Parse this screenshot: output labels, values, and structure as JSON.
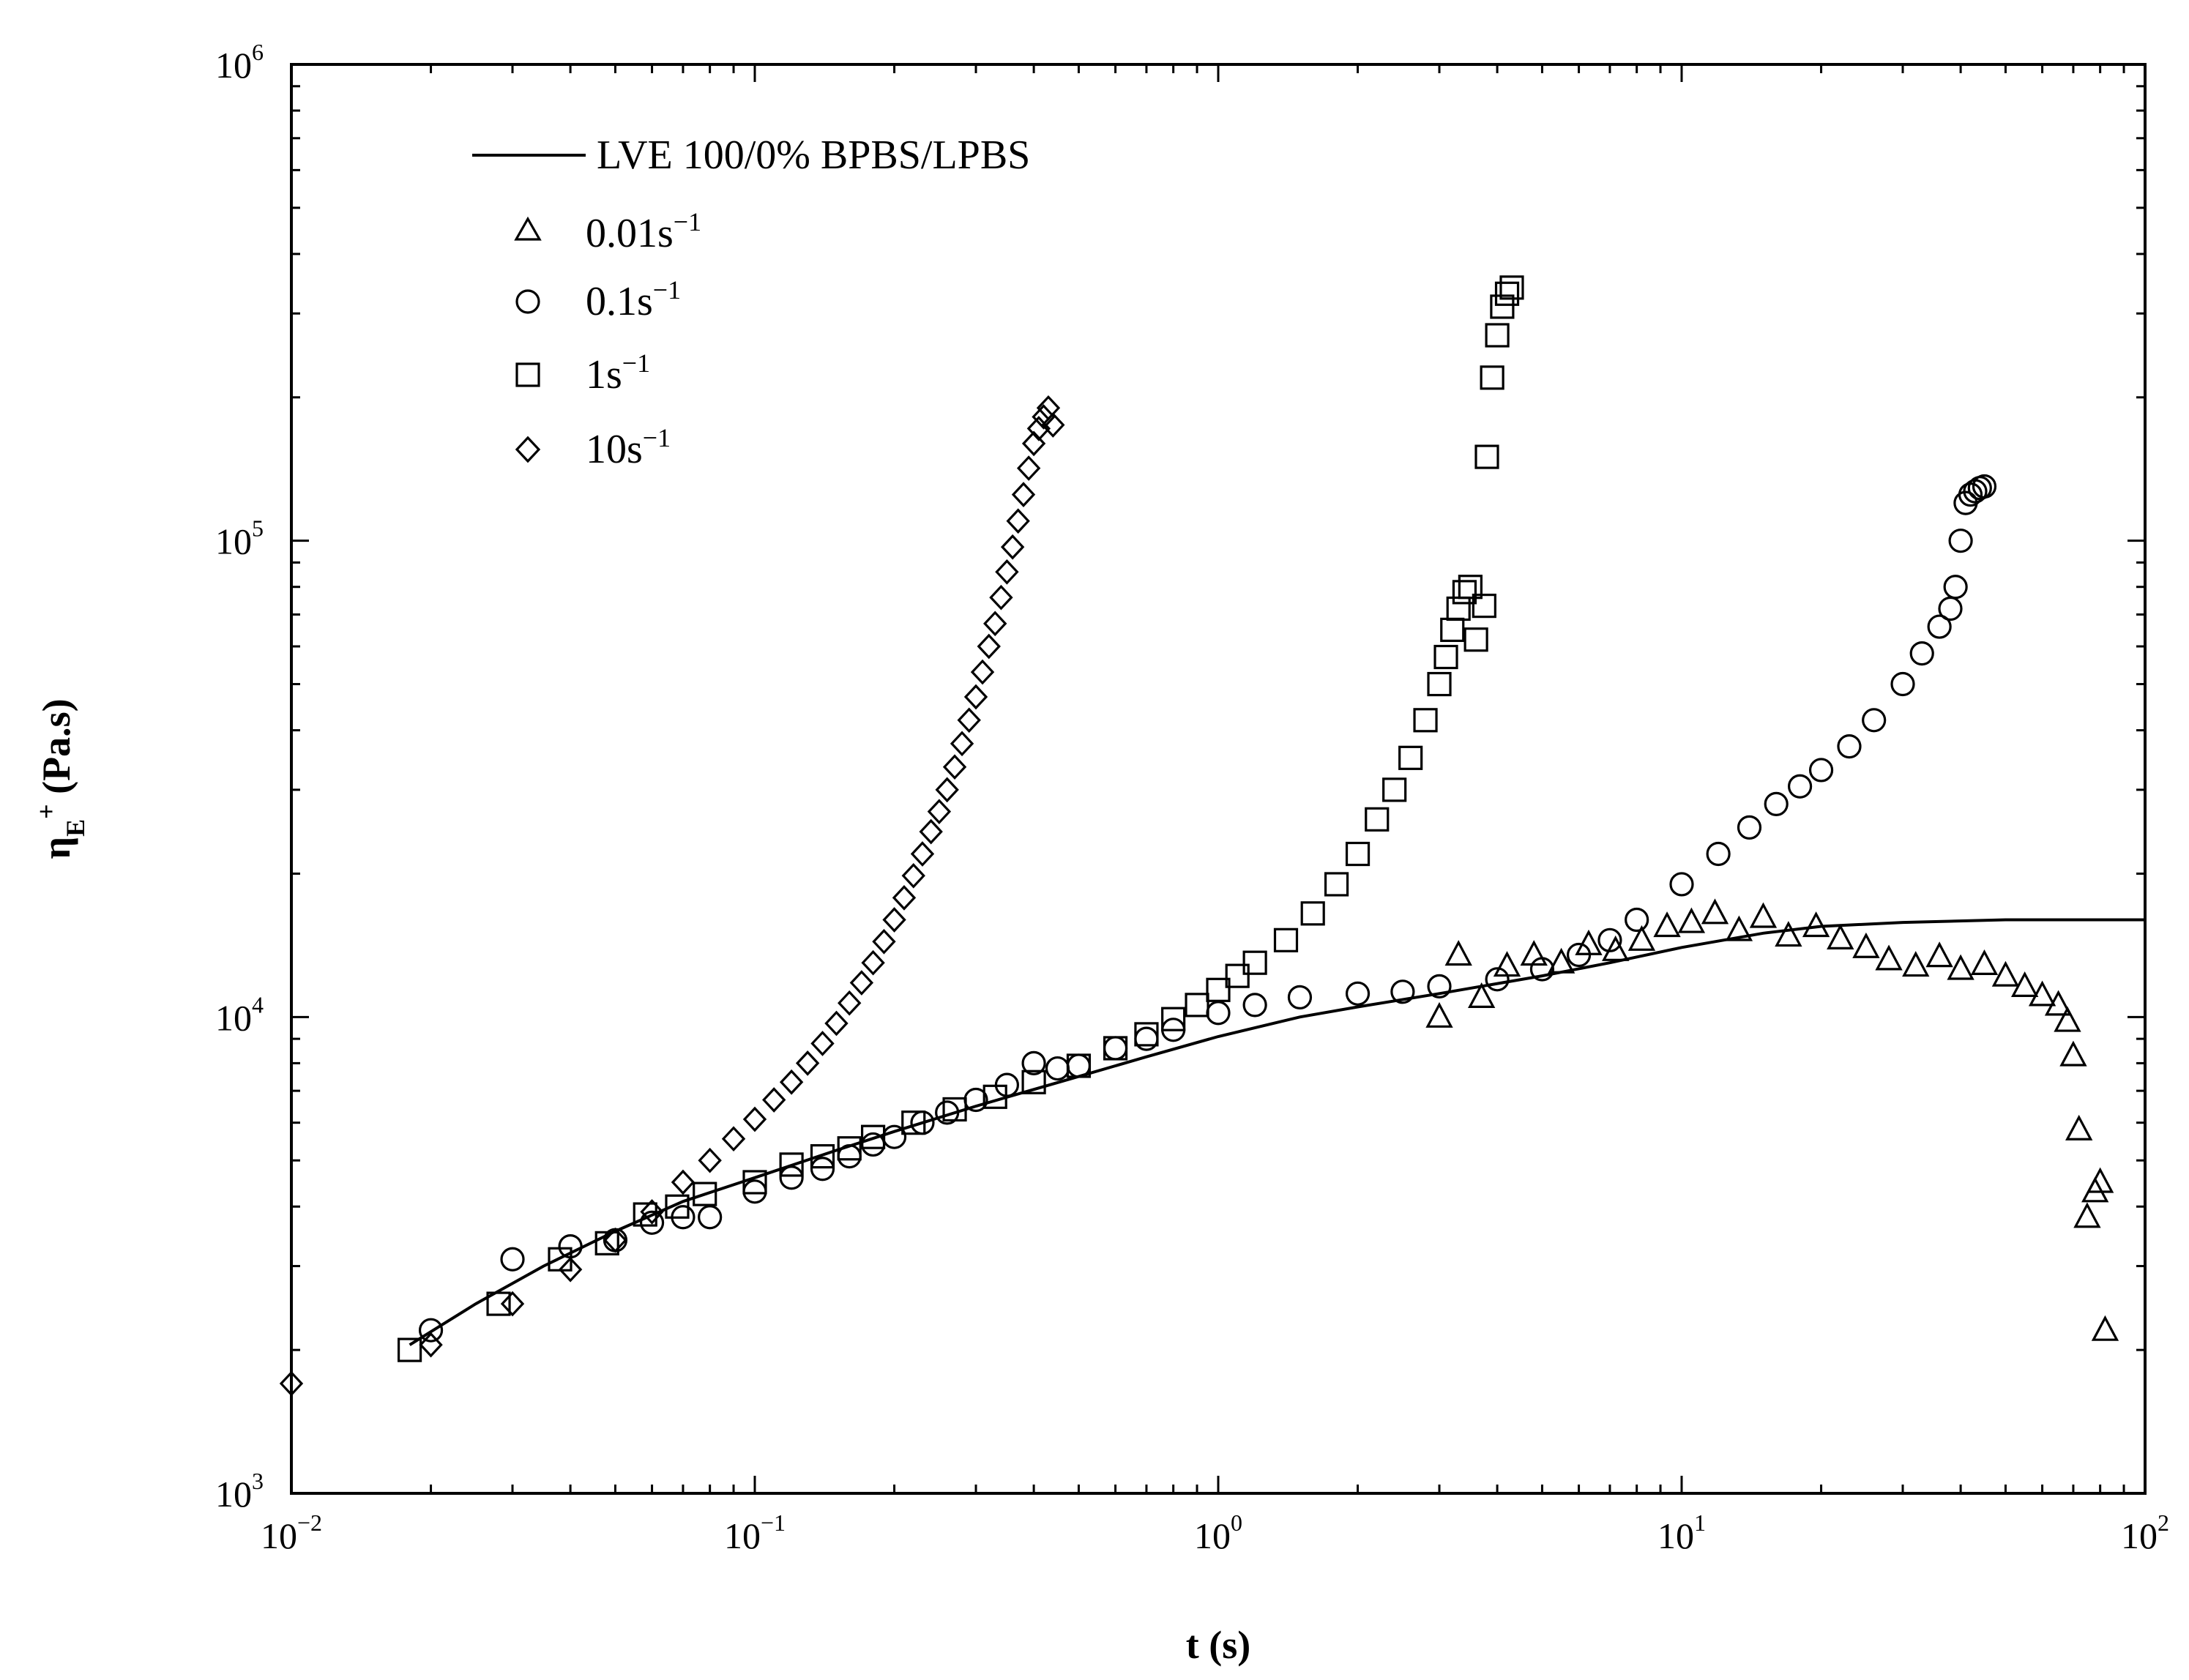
{
  "chart_data": {
    "type": "scatter",
    "x_scale": "log",
    "y_scale": "log",
    "xlim": [
      0.01,
      100
    ],
    "ylim": [
      1000,
      1000000
    ],
    "xlabel": {
      "base": "t",
      "rest": " (s)"
    },
    "ylabel": {
      "base": "η",
      "sub": "E",
      "sup": "+",
      "rest": " (Pa.s)"
    },
    "x_ticks": [
      {
        "value": 0.01,
        "base": "10",
        "exp": "−2"
      },
      {
        "value": 0.1,
        "base": "10",
        "exp": "−1"
      },
      {
        "value": 1,
        "base": "10",
        "exp": "0"
      },
      {
        "value": 10,
        "base": "10",
        "exp": "1"
      },
      {
        "value": 100,
        "base": "10",
        "exp": "2"
      }
    ],
    "y_ticks": [
      {
        "value": 1000,
        "base": "10",
        "exp": "3"
      },
      {
        "value": 10000,
        "base": "10",
        "exp": "4"
      },
      {
        "value": 100000,
        "base": "10",
        "exp": "5"
      },
      {
        "value": 1000000,
        "base": "10",
        "exp": "6"
      }
    ],
    "legend_position": "top-left",
    "line": {
      "name": "LVE 100/0% BPBS/LPBS",
      "x": [
        0.018,
        0.025,
        0.035,
        0.05,
        0.07,
        0.1,
        0.15,
        0.2,
        0.3,
        0.5,
        0.7,
        1.0,
        1.5,
        2.0,
        3.0,
        5.0,
        7.0,
        10.0,
        15.0,
        20.0,
        30.0,
        50.0,
        100.0
      ],
      "y": [
        2050,
        2500,
        3000,
        3550,
        4100,
        4600,
        5250,
        5750,
        6500,
        7500,
        8250,
        9100,
        10000,
        10500,
        11200,
        12200,
        13000,
        14000,
        15000,
        15500,
        15800,
        16000,
        16000
      ]
    },
    "series": [
      {
        "name": "0.01s",
        "name_sup": "−1",
        "marker": "triangle",
        "x": [
          3.0,
          3.3,
          3.7,
          4.2,
          4.8,
          5.5,
          6.3,
          7.2,
          8.2,
          9.3,
          10.5,
          11.8,
          13.3,
          15.0,
          17.0,
          19.5,
          22.0,
          25.0,
          28.0,
          32.0,
          36.0,
          40.0,
          45.0,
          50.0,
          55.0,
          60.0,
          65.0,
          68.0,
          70.0,
          72.0,
          75.0,
          78.0,
          80.0,
          82.0
        ],
        "y": [
          10000,
          13500,
          11000,
          12800,
          13500,
          13000,
          14200,
          13800,
          14500,
          15500,
          15800,
          16500,
          15200,
          16200,
          14800,
          15500,
          14600,
          14000,
          13200,
          12800,
          13400,
          12600,
          12900,
          12200,
          11600,
          11100,
          10600,
          9800,
          8300,
          5800,
          3800,
          4300,
          4500,
          2200
        ]
      },
      {
        "name": "0.1s",
        "name_sup": "−1",
        "marker": "circle",
        "x": [
          0.02,
          0.03,
          0.04,
          0.05,
          0.06,
          0.07,
          0.08,
          0.1,
          0.12,
          0.14,
          0.16,
          0.18,
          0.2,
          0.23,
          0.26,
          0.3,
          0.35,
          0.4,
          0.45,
          0.5,
          0.6,
          0.7,
          0.8,
          1.0,
          1.2,
          1.5,
          2.0,
          2.5,
          3.0,
          4.0,
          5.0,
          6.0,
          7.0,
          8.0,
          10.0,
          12.0,
          14.0,
          16.0,
          18.0,
          20.0,
          23.0,
          26.0,
          30.0,
          33.0,
          36.0,
          38.0,
          39.0,
          40.0,
          41.0,
          42.0,
          43.0,
          44.0,
          45.0
        ],
        "y": [
          2200,
          3100,
          3300,
          3400,
          3700,
          3800,
          3800,
          4300,
          4600,
          4800,
          5100,
          5400,
          5600,
          6000,
          6300,
          6700,
          7200,
          8000,
          7800,
          7900,
          8600,
          9000,
          9400,
          10200,
          10600,
          11000,
          11200,
          11300,
          11600,
          12000,
          12600,
          13500,
          14500,
          16000,
          19000,
          22000,
          25000,
          28000,
          30500,
          33000,
          37000,
          42000,
          50000,
          58000,
          66000,
          72000,
          80000,
          100000,
          120000,
          125000,
          127000,
          129000,
          130000
        ]
      },
      {
        "name": "1s",
        "name_sup": "−1",
        "marker": "square",
        "x": [
          0.018,
          0.028,
          0.038,
          0.048,
          0.058,
          0.068,
          0.078,
          0.1,
          0.12,
          0.14,
          0.16,
          0.18,
          0.22,
          0.27,
          0.33,
          0.4,
          0.5,
          0.6,
          0.7,
          0.8,
          0.9,
          1.0,
          1.1,
          1.2,
          1.4,
          1.6,
          1.8,
          2.0,
          2.2,
          2.4,
          2.6,
          2.8,
          3.0,
          3.1,
          3.2,
          3.3,
          3.4,
          3.5,
          3.6,
          3.75,
          3.8,
          3.9,
          4.0,
          4.1,
          4.2,
          4.3
        ],
        "y": [
          2000,
          2500,
          3100,
          3350,
          3850,
          4000,
          4250,
          4500,
          4900,
          5100,
          5300,
          5600,
          6000,
          6400,
          6800,
          7300,
          7900,
          8600,
          9200,
          9900,
          10600,
          11400,
          12200,
          13000,
          14500,
          16500,
          19000,
          22000,
          26000,
          30000,
          35000,
          42000,
          50000,
          57000,
          65000,
          72000,
          78000,
          80000,
          62000,
          73000,
          150000,
          220000,
          270000,
          310000,
          330000,
          340000
        ]
      },
      {
        "name": "10s",
        "name_sup": "−1",
        "marker": "diamond",
        "x": [
          0.01,
          0.02,
          0.03,
          0.04,
          0.05,
          0.06,
          0.07,
          0.08,
          0.09,
          0.1,
          0.11,
          0.12,
          0.13,
          0.14,
          0.15,
          0.16,
          0.17,
          0.18,
          0.19,
          0.2,
          0.21,
          0.22,
          0.23,
          0.24,
          0.25,
          0.26,
          0.27,
          0.28,
          0.29,
          0.3,
          0.31,
          0.32,
          0.33,
          0.34,
          0.35,
          0.36,
          0.37,
          0.38,
          0.39,
          0.4,
          0.41,
          0.42,
          0.43,
          0.44
        ],
        "y": [
          1700,
          2050,
          2500,
          2950,
          3400,
          3900,
          4500,
          5000,
          5550,
          6100,
          6700,
          7300,
          8000,
          8800,
          9700,
          10700,
          11800,
          13000,
          14400,
          16000,
          17800,
          19800,
          22000,
          24500,
          27000,
          30000,
          33500,
          37500,
          42000,
          47000,
          53000,
          60000,
          67000,
          76000,
          86000,
          97000,
          110000,
          125000,
          142000,
          160000,
          172000,
          182000,
          190000,
          175000
        ]
      }
    ]
  }
}
